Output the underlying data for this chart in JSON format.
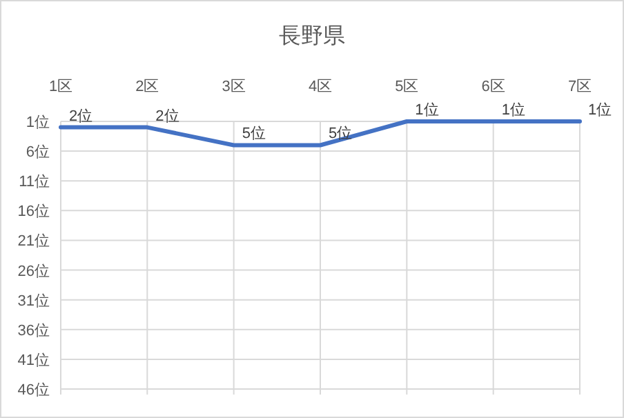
{
  "chart_data": {
    "type": "line",
    "title": "長野県",
    "categories": [
      "1区",
      "2区",
      "3区",
      "4区",
      "5区",
      "6区",
      "7区"
    ],
    "series": [
      {
        "color": "#4472c4",
        "values": [
          2,
          2,
          5,
          5,
          1,
          1,
          1
        ],
        "value_labels": [
          "2位",
          "2位",
          "5位",
          "5位",
          "1位",
          "1位",
          "1位"
        ]
      }
    ],
    "ylim": [
      46,
      1
    ],
    "yticks": [
      {
        "value": 1,
        "label": "1位"
      },
      {
        "value": 6,
        "label": "6位"
      },
      {
        "value": 11,
        "label": "11位"
      },
      {
        "value": 16,
        "label": "16位"
      },
      {
        "value": 21,
        "label": "21位"
      },
      {
        "value": 26,
        "label": "26位"
      },
      {
        "value": 31,
        "label": "31位"
      },
      {
        "value": 36,
        "label": "36位"
      },
      {
        "value": 41,
        "label": "41位"
      },
      {
        "value": 46,
        "label": "46位"
      }
    ],
    "grid": true,
    "marker": "none",
    "line_style": "solid"
  }
}
